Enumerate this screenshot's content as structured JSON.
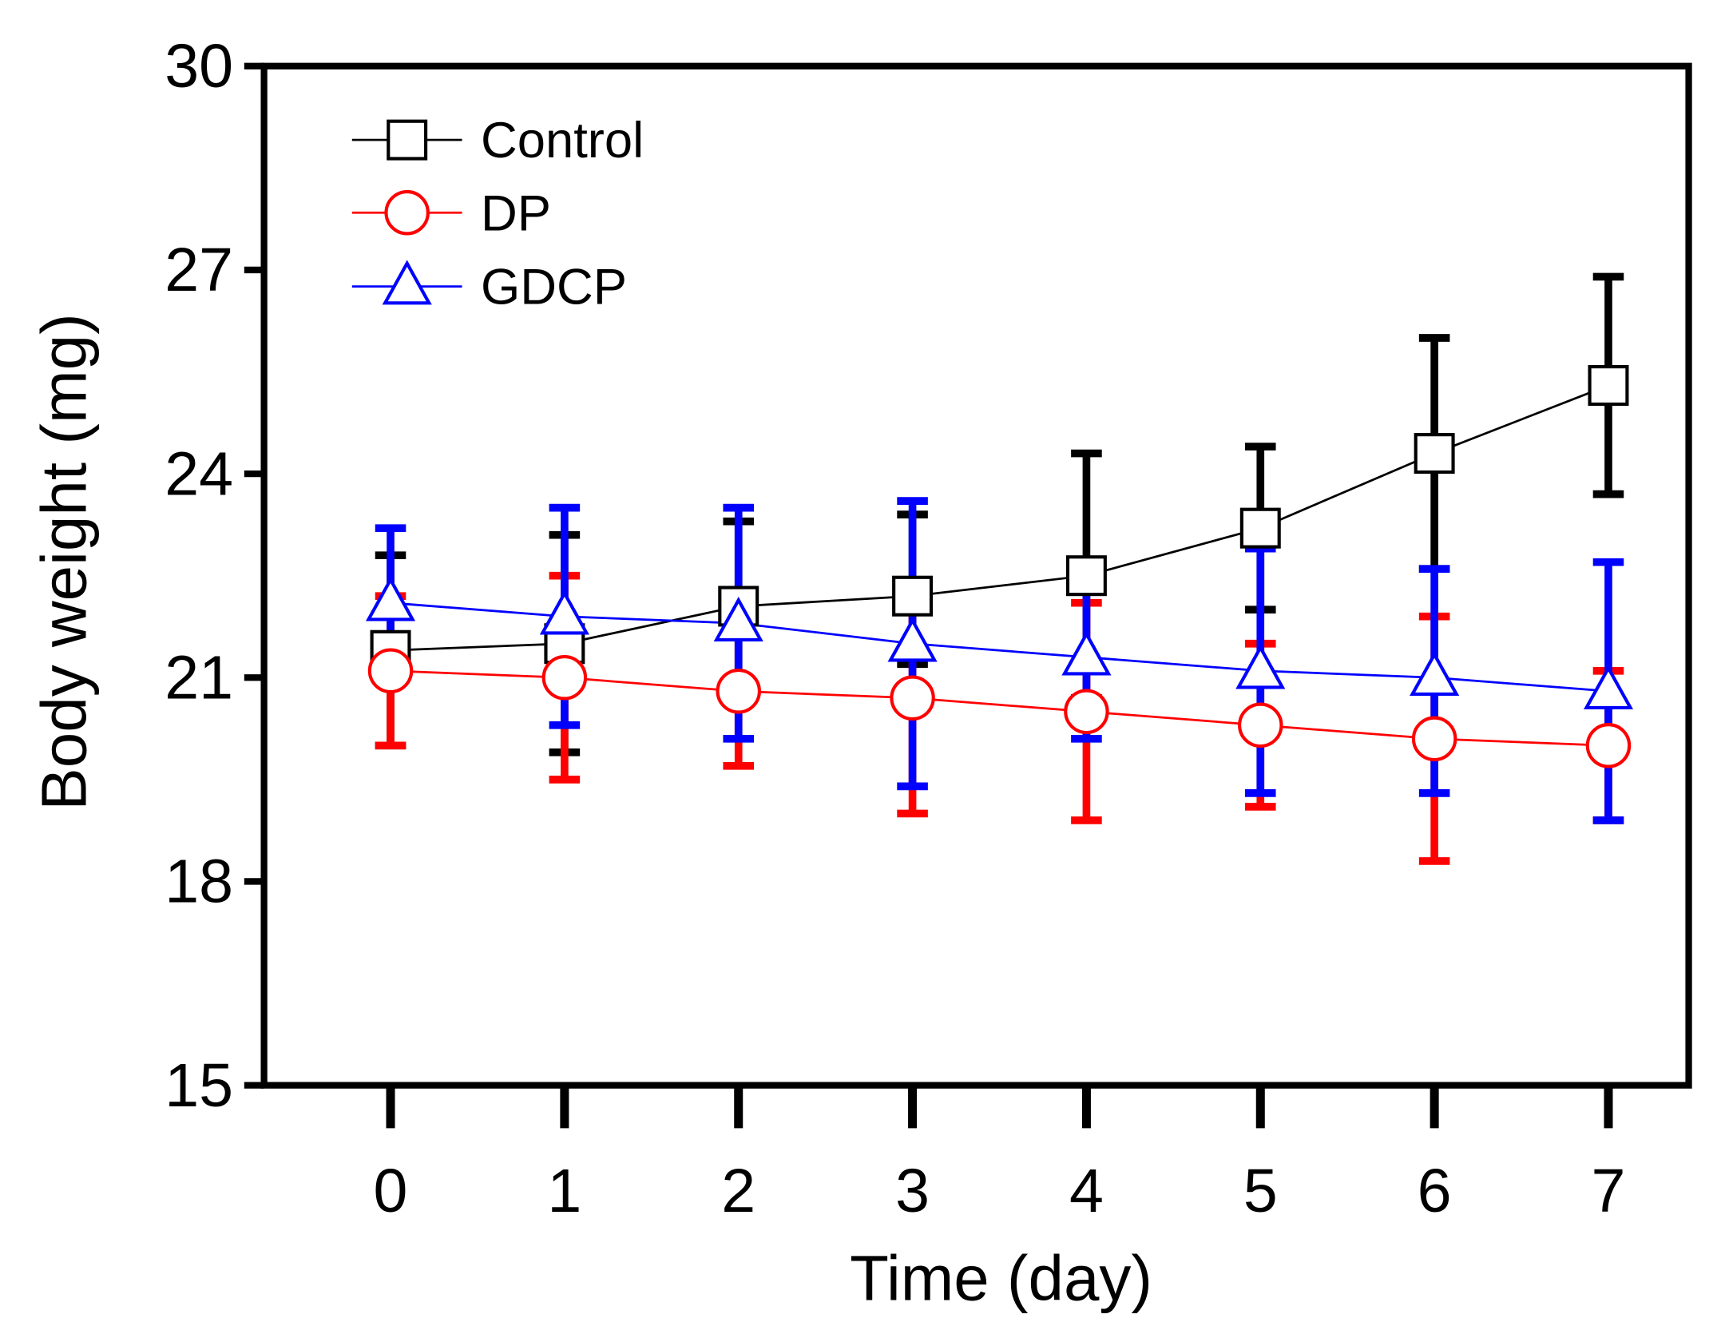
{
  "chart_data": {
    "type": "line",
    "title": "",
    "xlabel": "Time (day)",
    "ylabel": "Body weight (mg)",
    "x": [
      0,
      1,
      2,
      3,
      4,
      5,
      6,
      7
    ],
    "xlim": [
      -0.6,
      7.5
    ],
    "ylim": [
      15,
      30
    ],
    "yticks": [
      15,
      18,
      21,
      24,
      27,
      30
    ],
    "xticks": [
      0,
      1,
      2,
      3,
      4,
      5,
      6,
      7
    ],
    "grid": false,
    "legend_position": "top-left",
    "series": [
      {
        "name": "Control",
        "color": "#000000",
        "marker": "square",
        "values": [
          21.4,
          21.5,
          22.05,
          22.2,
          22.5,
          23.2,
          24.3,
          25.3
        ],
        "err_upper": [
          22.8,
          23.1,
          23.3,
          23.4,
          24.3,
          24.4,
          26.0,
          26.9
        ],
        "err_lower": [
          20.0,
          19.9,
          20.7,
          21.2,
          20.7,
          22.0,
          22.6,
          23.7
        ]
      },
      {
        "name": "DP",
        "color": "#ff0000",
        "marker": "circle",
        "values": [
          21.1,
          21.0,
          20.8,
          20.7,
          20.5,
          20.3,
          20.1,
          20.0
        ],
        "err_upper": [
          22.2,
          22.5,
          21.9,
          22.4,
          22.1,
          21.5,
          21.9,
          21.1
        ],
        "err_lower": [
          20.0,
          19.5,
          19.7,
          19.0,
          18.9,
          19.1,
          18.3,
          18.9
        ]
      },
      {
        "name": "GDCP",
        "color": "#0000ff",
        "marker": "triangle",
        "values": [
          22.1,
          21.9,
          21.8,
          21.5,
          21.3,
          21.1,
          21.0,
          20.8
        ],
        "err_upper": [
          23.2,
          23.5,
          23.5,
          23.6,
          22.5,
          22.9,
          22.6,
          22.7
        ],
        "err_lower": [
          21.0,
          20.3,
          20.1,
          19.4,
          20.1,
          19.3,
          19.3,
          18.9
        ]
      }
    ]
  }
}
